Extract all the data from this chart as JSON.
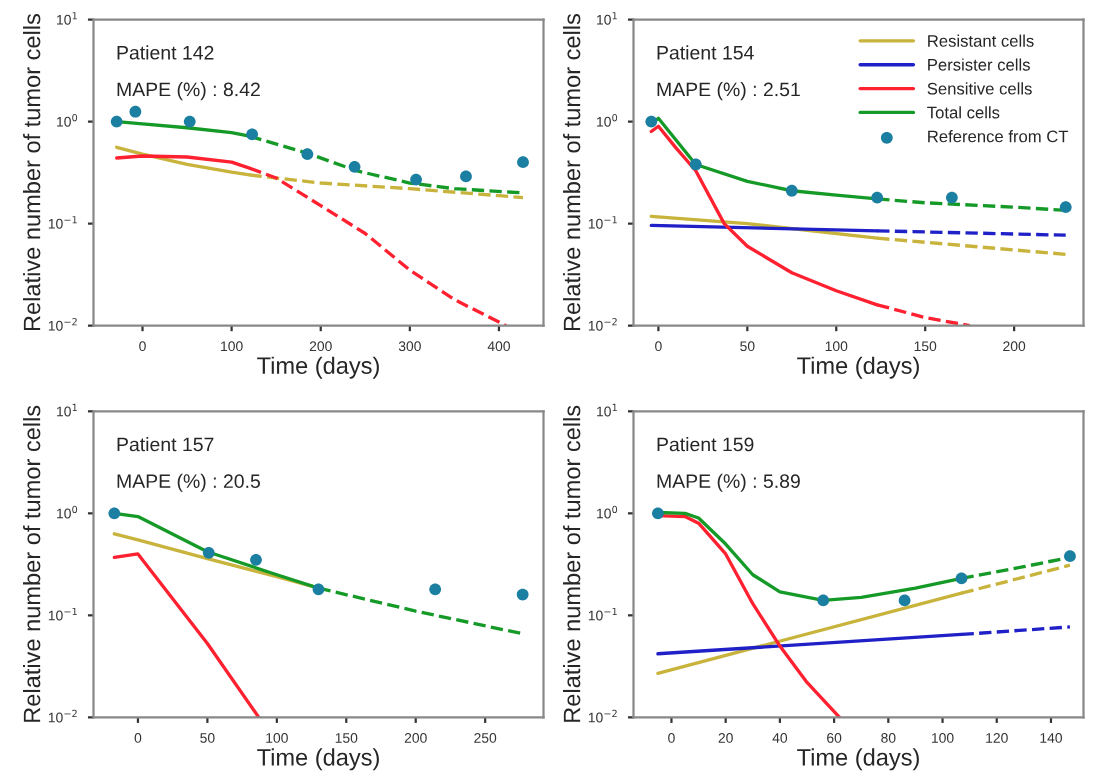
{
  "chart_data": [
    {
      "type": "line",
      "annotations": [
        "Patient 142",
        "MAPE (%) : 8.42"
      ],
      "xlabel": "Time (days)",
      "ylabel": "Relative number of tumor cells",
      "log": "y",
      "grid": false,
      "xlim": [
        -55,
        450
      ],
      "xticks": [
        0,
        100,
        200,
        300,
        400
      ],
      "ylim": [
        0.01,
        10
      ],
      "yticks": [
        {
          "value": 0.01,
          "label": "10$^{−2}$"
        },
        {
          "value": 0.1,
          "label": "10$^{−1}$"
        },
        {
          "value": 1,
          "label": "10$^{0}$"
        },
        {
          "value": 10,
          "label": "10$^{1}$"
        }
      ],
      "series": [
        {
          "type": "line",
          "color": "#c8b43c",
          "line_style": "solid",
          "x": [
            -29,
            0,
            50,
            100,
            120
          ],
          "values": [
            0.56,
            0.48,
            0.38,
            0.32,
            0.3
          ]
        },
        {
          "type": "line",
          "color": "#c8b43c",
          "line_style": "dashed",
          "x": [
            120,
            150,
            200,
            300,
            427
          ],
          "values": [
            0.3,
            0.28,
            0.25,
            0.22,
            0.18
          ]
        },
        {
          "type": "line",
          "color": "#ff2030",
          "line_style": "solid",
          "x": [
            -29,
            0,
            50,
            100,
            120
          ],
          "values": [
            0.44,
            0.46,
            0.45,
            0.4,
            0.35
          ]
        },
        {
          "type": "line",
          "color": "#ff2030",
          "line_style": "dashed",
          "x": [
            120,
            150,
            200,
            250,
            300,
            350,
            408
          ],
          "values": [
            0.35,
            0.28,
            0.15,
            0.08,
            0.035,
            0.018,
            0.01
          ]
        },
        {
          "type": "line",
          "color": "#159a28",
          "line_style": "solid",
          "x": [
            -29,
            0,
            50,
            100,
            120
          ],
          "values": [
            1.0,
            0.95,
            0.87,
            0.78,
            0.72
          ]
        },
        {
          "type": "line",
          "color": "#159a28",
          "line_style": "dashed",
          "x": [
            120,
            185,
            240,
            300,
            350,
            427
          ],
          "values": [
            0.72,
            0.49,
            0.33,
            0.25,
            0.22,
            0.2
          ]
        },
        {
          "type": "scatter",
          "color": "#1a7fa0",
          "marker": "circle",
          "x": [
            -29,
            -8,
            53,
            123,
            185,
            238,
            307,
            363,
            427
          ],
          "values": [
            1.0,
            1.25,
            1.0,
            0.75,
            0.48,
            0.36,
            0.27,
            0.29,
            0.4
          ]
        }
      ]
    },
    {
      "type": "line",
      "annotations": [
        "Patient 154",
        "MAPE (%) : 2.51"
      ],
      "xlabel": "Time (days)",
      "ylabel": "Relative number of tumor cells",
      "log": "y",
      "grid": false,
      "legend": "top right",
      "xlim": [
        -14,
        239
      ],
      "xticks": [
        0,
        50,
        100,
        150,
        200
      ],
      "ylim": [
        0.01,
        10
      ],
      "yticks": [
        {
          "value": 0.01,
          "label": "10$^{−2}$"
        },
        {
          "value": 0.1,
          "label": "10$^{−1}$"
        },
        {
          "value": 1,
          "label": "10$^{0}$"
        },
        {
          "value": 10,
          "label": "10$^{1}$"
        }
      ],
      "series": [
        {
          "type": "line",
          "name": "Resistant cells",
          "color": "#c8b43c",
          "line_style": "solid",
          "x": [
            -4,
            50,
            123
          ],
          "values": [
            0.118,
            0.1,
            0.072
          ]
        },
        {
          "type": "line",
          "color": "#c8b43c",
          "line_style": "dashed",
          "x": [
            123,
            229
          ],
          "values": [
            0.072,
            0.05
          ]
        },
        {
          "type": "line",
          "name": "Persister cells",
          "color": "#2020c8",
          "line_style": "solid",
          "x": [
            -4,
            123
          ],
          "values": [
            0.096,
            0.085
          ]
        },
        {
          "type": "line",
          "color": "#2020c8",
          "line_style": "dashed",
          "x": [
            123,
            229
          ],
          "values": [
            0.085,
            0.077
          ]
        },
        {
          "type": "line",
          "name": "Sensitive cells",
          "color": "#ff2030",
          "line_style": "solid",
          "x": [
            -4,
            0,
            10,
            21,
            37,
            50,
            75,
            100,
            123
          ],
          "values": [
            0.8,
            0.9,
            0.55,
            0.33,
            0.1,
            0.06,
            0.033,
            0.022,
            0.016
          ]
        },
        {
          "type": "line",
          "color": "#ff2030",
          "line_style": "dashed",
          "x": [
            123,
            150,
            175
          ],
          "values": [
            0.016,
            0.012,
            0.01
          ]
        },
        {
          "type": "line",
          "name": "Total cells",
          "color": "#159a28",
          "line_style": "solid",
          "x": [
            -4,
            0,
            21,
            50,
            75,
            100,
            123
          ],
          "values": [
            0.95,
            1.08,
            0.38,
            0.26,
            0.21,
            0.19,
            0.175
          ]
        },
        {
          "type": "line",
          "color": "#159a28",
          "line_style": "dashed",
          "x": [
            123,
            150,
            200,
            229
          ],
          "values": [
            0.175,
            0.16,
            0.145,
            0.135
          ]
        },
        {
          "type": "scatter",
          "name": "Reference from CT",
          "color": "#1a7fa0",
          "marker": "circle",
          "x": [
            -4,
            21,
            75,
            123,
            165,
            229
          ],
          "values": [
            1.0,
            0.38,
            0.21,
            0.18,
            0.18,
            0.145
          ]
        }
      ]
    },
    {
      "type": "line",
      "annotations": [
        "Patient 157",
        "MAPE (%) : 20.5"
      ],
      "xlabel": "Time (days)",
      "ylabel": "Relative number of tumor cells",
      "log": "y",
      "grid": false,
      "xlim": [
        -32,
        292
      ],
      "xticks": [
        0,
        50,
        100,
        150,
        200,
        250
      ],
      "ylim": [
        0.01,
        10
      ],
      "yticks": [
        {
          "value": 0.01,
          "label": "10$^{−2}$"
        },
        {
          "value": 0.1,
          "label": "10$^{−1}$"
        },
        {
          "value": 1,
          "label": "10$^{0}$"
        },
        {
          "value": 10,
          "label": "10$^{1}$"
        }
      ],
      "series": [
        {
          "type": "line",
          "color": "#c8b43c",
          "line_style": "solid",
          "x": [
            -17,
            0,
            50,
            100,
            130
          ],
          "values": [
            0.63,
            0.55,
            0.36,
            0.24,
            0.185
          ]
        },
        {
          "type": "line",
          "color": "#ff2030",
          "line_style": "solid",
          "x": [
            -17,
            0,
            50,
            87
          ],
          "values": [
            0.37,
            0.4,
            0.053,
            0.01
          ]
        },
        {
          "type": "line",
          "color": "#159a28",
          "line_style": "solid",
          "x": [
            -17,
            0,
            50,
            100,
            130
          ],
          "values": [
            1.0,
            0.93,
            0.42,
            0.25,
            0.185
          ]
        },
        {
          "type": "line",
          "color": "#159a28",
          "line_style": "dashed",
          "x": [
            130,
            200,
            277
          ],
          "values": [
            0.185,
            0.11,
            0.066
          ]
        },
        {
          "type": "scatter",
          "color": "#1a7fa0",
          "marker": "circle",
          "x": [
            -17,
            51,
            85,
            130,
            214,
            277
          ],
          "values": [
            1.0,
            0.41,
            0.35,
            0.18,
            0.18,
            0.16
          ]
        }
      ]
    },
    {
      "type": "line",
      "annotations": [
        "Patient 159",
        "MAPE (%) : 5.89"
      ],
      "xlabel": "Time (days)",
      "ylabel": "Relative number of tumor cells",
      "log": "y",
      "grid": false,
      "xlim": [
        -14,
        152
      ],
      "xticks": [
        0,
        20,
        40,
        60,
        80,
        100,
        120,
        140
      ],
      "ylim": [
        0.01,
        10
      ],
      "yticks": [
        {
          "value": 0.01,
          "label": "10$^{−2}$"
        },
        {
          "value": 0.1,
          "label": "10$^{−1}$"
        },
        {
          "value": 1,
          "label": "10$^{0}$"
        },
        {
          "value": 10,
          "label": "10$^{1}$"
        }
      ],
      "series": [
        {
          "type": "line",
          "color": "#c8b43c",
          "line_style": "solid",
          "x": [
            -5,
            107
          ],
          "values": [
            0.027,
            0.165
          ]
        },
        {
          "type": "line",
          "color": "#c8b43c",
          "line_style": "dashed",
          "x": [
            107,
            147
          ],
          "values": [
            0.165,
            0.31
          ]
        },
        {
          "type": "line",
          "color": "#2020c8",
          "line_style": "solid",
          "x": [
            -5,
            107
          ],
          "values": [
            0.042,
            0.065
          ]
        },
        {
          "type": "line",
          "color": "#2020c8",
          "line_style": "dashed",
          "x": [
            107,
            147
          ],
          "values": [
            0.065,
            0.077
          ]
        },
        {
          "type": "line",
          "color": "#ff2030",
          "line_style": "solid",
          "x": [
            -5,
            5,
            10,
            20,
            30,
            40,
            50,
            62
          ],
          "values": [
            0.95,
            0.93,
            0.8,
            0.4,
            0.13,
            0.05,
            0.022,
            0.01
          ]
        },
        {
          "type": "line",
          "color": "#159a28",
          "line_style": "solid",
          "x": [
            -5,
            5,
            10,
            20,
            30,
            40,
            56,
            70,
            90,
            107
          ],
          "values": [
            1.02,
            1.0,
            0.9,
            0.5,
            0.25,
            0.17,
            0.14,
            0.15,
            0.185,
            0.23
          ]
        },
        {
          "type": "line",
          "color": "#159a28",
          "line_style": "dashed",
          "x": [
            107,
            130,
            147
          ],
          "values": [
            0.23,
            0.3,
            0.37
          ]
        },
        {
          "type": "scatter",
          "color": "#1a7fa0",
          "marker": "circle",
          "x": [
            -5,
            56,
            86,
            107,
            147
          ],
          "values": [
            1.0,
            0.14,
            0.14,
            0.23,
            0.38
          ]
        }
      ]
    }
  ]
}
